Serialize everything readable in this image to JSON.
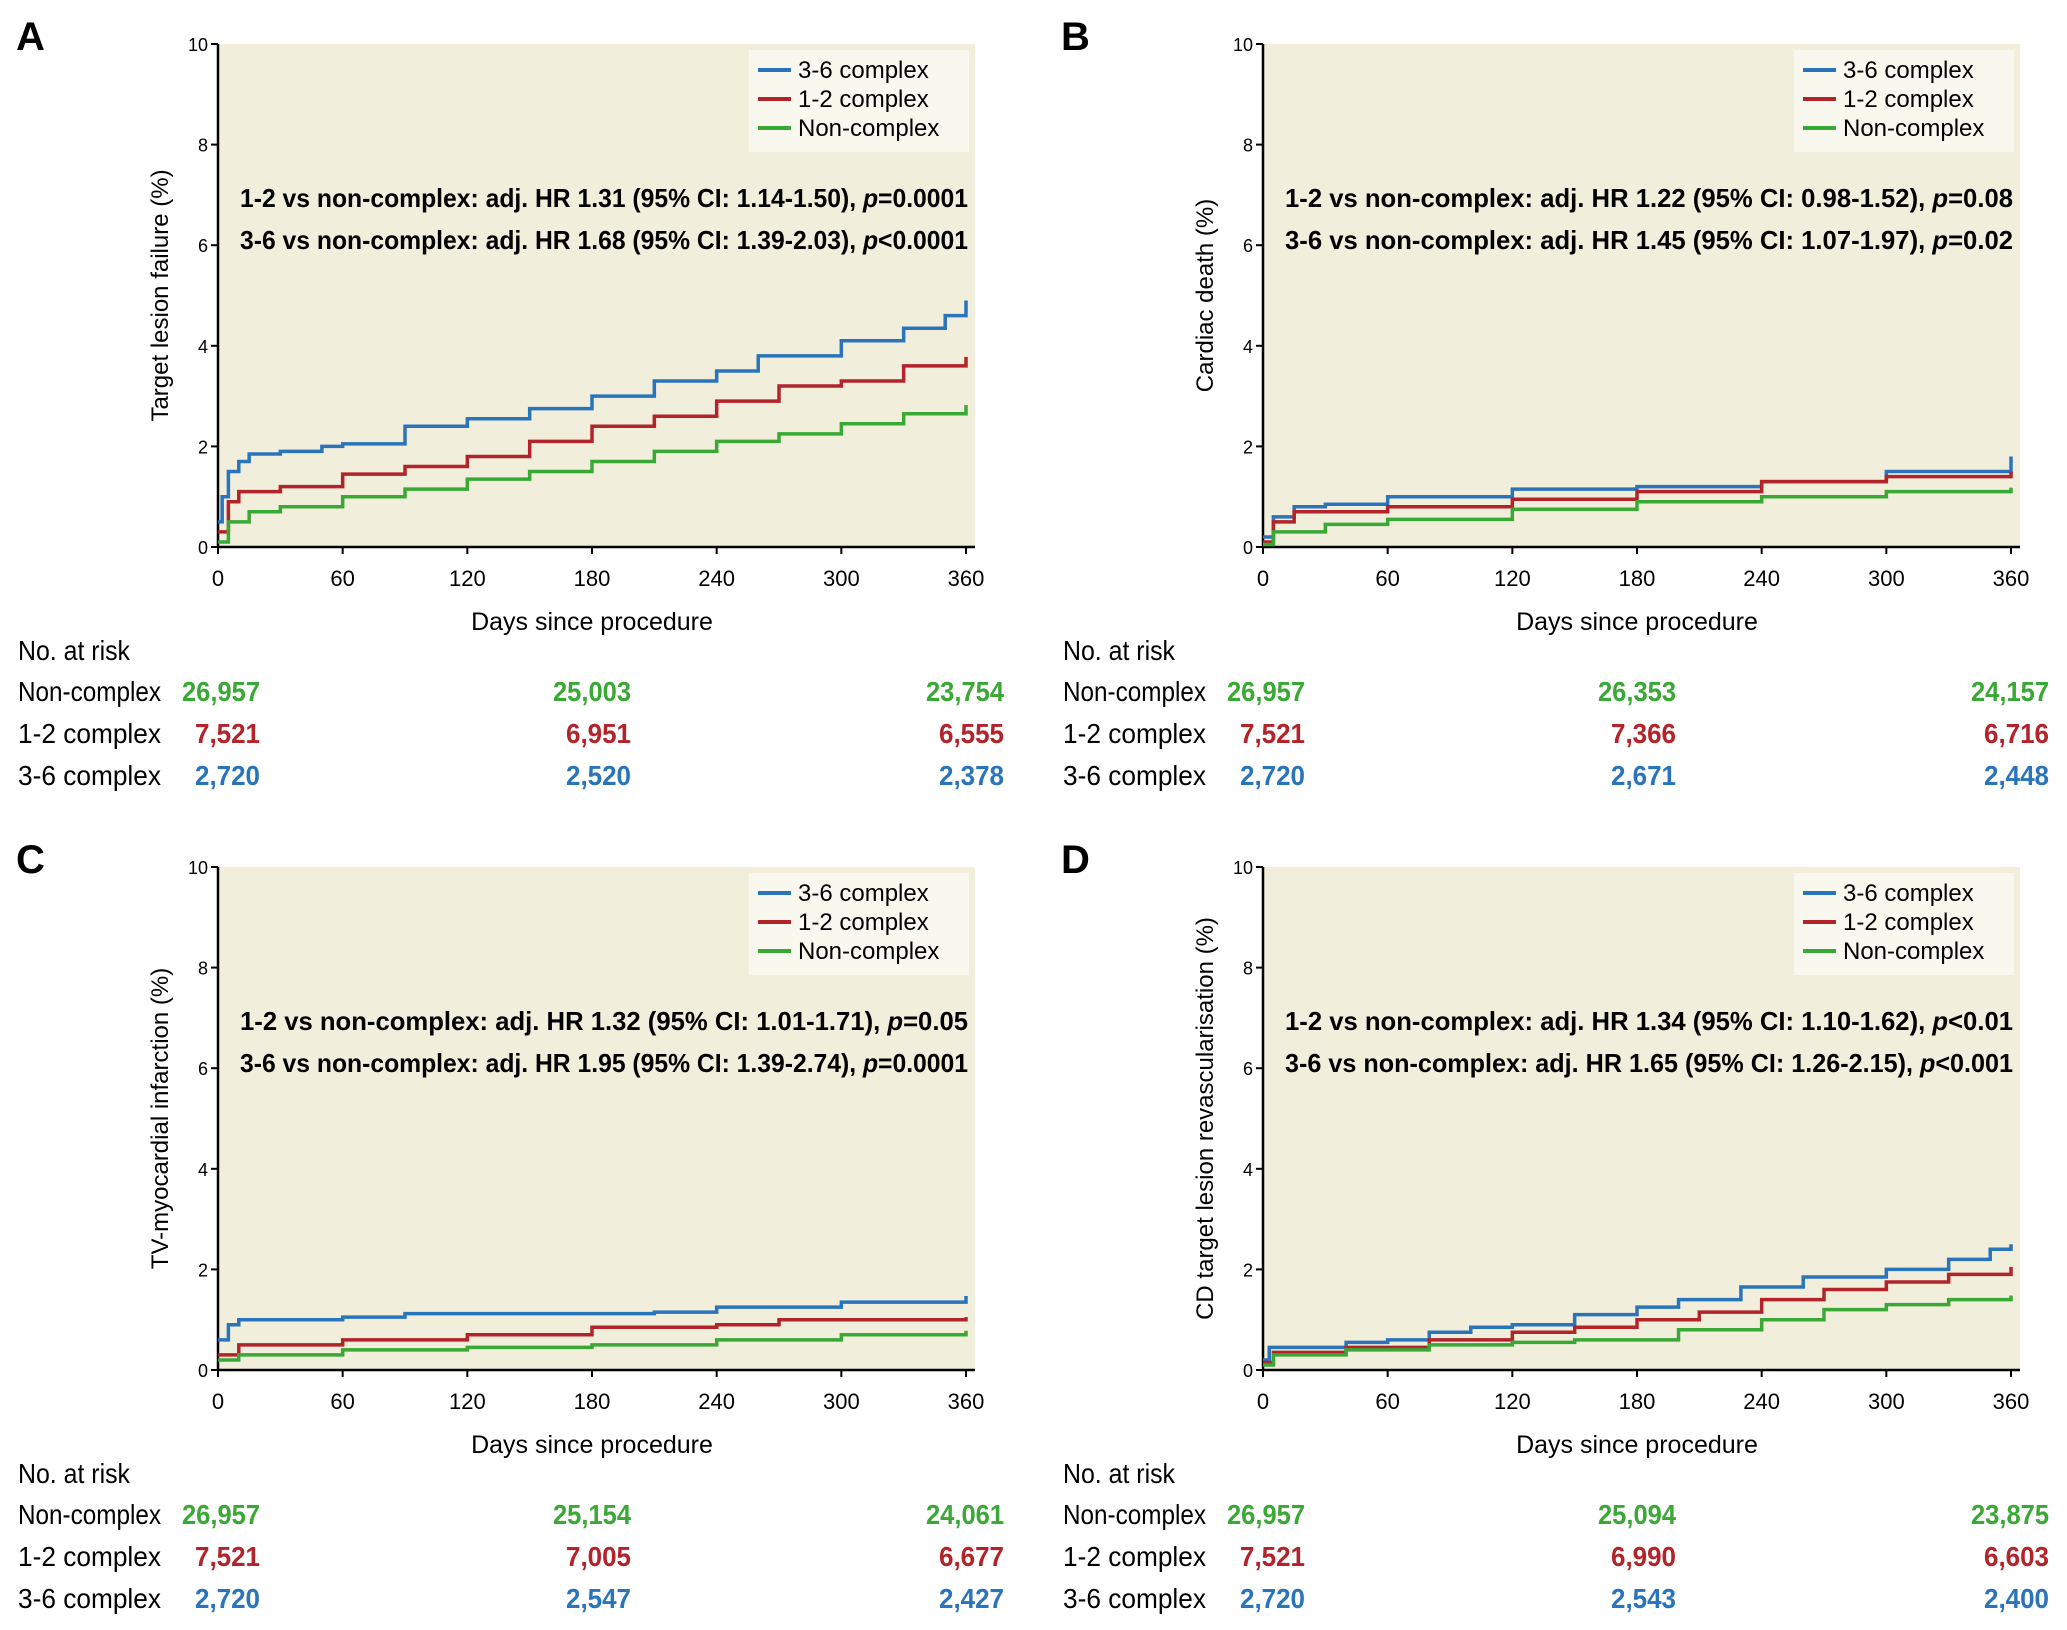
{
  "colors": {
    "blue": "#2a74bb",
    "red": "#b3232a",
    "green": "#3aa835",
    "plot_bg": "#f2eedc",
    "legend_bg": "#f9f8ef"
  },
  "chart_data": [
    {
      "type": "line",
      "panel": "A",
      "ylabel": "Target lesion failure (%)",
      "xlabel": "Days since procedure",
      "xlim": [
        0,
        360
      ],
      "ylim": [
        0,
        10
      ],
      "xticks": [
        0,
        60,
        120,
        180,
        240,
        300,
        360
      ],
      "yticks": [
        0,
        2,
        4,
        6,
        8,
        10
      ],
      "legend": [
        "3-6 complex",
        "1-2 complex",
        "Non-complex"
      ],
      "legend_position": "top-right",
      "annotations": [
        {
          "pre": "1-2 vs non-complex: adj. HR 1.31 (95% CI: 1.14-1.50), ",
          "p": "p",
          "post": "=0.0001"
        },
        {
          "pre": "3-6 vs non-complex: adj. HR 1.68 (95% CI: 1.39-2.03), ",
          "p": "p",
          "post": "<0.0001"
        }
      ],
      "series": [
        {
          "name": "3-6 complex",
          "color": "blue",
          "x": [
            0,
            2,
            5,
            10,
            15,
            30,
            50,
            60,
            90,
            120,
            150,
            180,
            200,
            210,
            240,
            260,
            300,
            330,
            350,
            360
          ],
          "y": [
            0.5,
            1.0,
            1.5,
            1.7,
            1.85,
            1.9,
            2.0,
            2.05,
            2.4,
            2.55,
            2.75,
            3.0,
            3.0,
            3.3,
            3.5,
            3.8,
            4.1,
            4.35,
            4.6,
            4.9
          ]
        },
        {
          "name": "1-2 complex",
          "color": "red",
          "x": [
            0,
            5,
            10,
            30,
            60,
            90,
            120,
            150,
            180,
            210,
            240,
            270,
            300,
            330,
            360
          ],
          "y": [
            0.3,
            0.9,
            1.1,
            1.2,
            1.45,
            1.6,
            1.8,
            2.1,
            2.4,
            2.6,
            2.9,
            3.2,
            3.3,
            3.6,
            3.78
          ]
        },
        {
          "name": "Non-complex",
          "color": "green",
          "x": [
            0,
            5,
            15,
            30,
            60,
            90,
            120,
            150,
            180,
            210,
            240,
            270,
            300,
            330,
            360
          ],
          "y": [
            0.1,
            0.5,
            0.7,
            0.8,
            1.0,
            1.15,
            1.35,
            1.5,
            1.7,
            1.9,
            2.1,
            2.25,
            2.45,
            2.65,
            2.82
          ]
        }
      ],
      "risk_table": {
        "title": "No. at risk",
        "rows": [
          {
            "label": "Non-complex",
            "color": "green",
            "values": [
              "26,957",
              "25,003",
              "23,754"
            ]
          },
          {
            "label": "1-2 complex",
            "color": "red",
            "values": [
              "7,521",
              "6,951",
              "6,555"
            ]
          },
          {
            "label": "3-6 complex",
            "color": "blue",
            "values": [
              "2,720",
              "2,520",
              "2,378"
            ]
          }
        ]
      }
    },
    {
      "type": "line",
      "panel": "B",
      "ylabel": "Cardiac death (%)",
      "xlabel": "Days since procedure",
      "xlim": [
        0,
        360
      ],
      "ylim": [
        0,
        10
      ],
      "xticks": [
        0,
        60,
        120,
        180,
        240,
        300,
        360
      ],
      "yticks": [
        0,
        2,
        4,
        6,
        8,
        10
      ],
      "legend": [
        "3-6 complex",
        "1-2 complex",
        "Non-complex"
      ],
      "legend_position": "top-right",
      "annotations": [
        {
          "pre": "1-2 vs non-complex: adj. HR 1.22 (95% CI: 0.98-1.52), ",
          "p": "p",
          "post": "=0.08"
        },
        {
          "pre": "3-6 vs non-complex: adj. HR 1.45 (95% CI: 1.07-1.97), ",
          "p": "p",
          "post": "=0.02"
        }
      ],
      "series": [
        {
          "name": "3-6 complex",
          "color": "blue",
          "x": [
            0,
            5,
            15,
            30,
            60,
            120,
            180,
            240,
            300,
            360
          ],
          "y": [
            0.2,
            0.6,
            0.8,
            0.85,
            1.0,
            1.15,
            1.2,
            1.3,
            1.5,
            1.8
          ]
        },
        {
          "name": "1-2 complex",
          "color": "red",
          "x": [
            0,
            5,
            15,
            60,
            120,
            180,
            240,
            300,
            360
          ],
          "y": [
            0.1,
            0.5,
            0.7,
            0.8,
            0.95,
            1.1,
            1.3,
            1.4,
            1.5
          ]
        },
        {
          "name": "Non-complex",
          "color": "green",
          "x": [
            0,
            5,
            30,
            60,
            120,
            180,
            240,
            300,
            360
          ],
          "y": [
            0.05,
            0.3,
            0.45,
            0.55,
            0.75,
            0.9,
            1.0,
            1.1,
            1.18
          ]
        }
      ],
      "risk_table": {
        "title": "No. at risk",
        "rows": [
          {
            "label": "Non-complex",
            "color": "green",
            "values": [
              "26,957",
              "26,353",
              "24,157"
            ]
          },
          {
            "label": "1-2 complex",
            "color": "red",
            "values": [
              "7,521",
              "7,366",
              "6,716"
            ]
          },
          {
            "label": "3-6 complex",
            "color": "blue",
            "values": [
              "2,720",
              "2,671",
              "2,448"
            ]
          }
        ]
      }
    },
    {
      "type": "line",
      "panel": "C",
      "ylabel": "TV-myocardial infarction (%)",
      "xlabel": "Days since procedure",
      "xlim": [
        0,
        360
      ],
      "ylim": [
        0,
        10
      ],
      "xticks": [
        0,
        60,
        120,
        180,
        240,
        300,
        360
      ],
      "yticks": [
        0,
        2,
        4,
        6,
        8,
        10
      ],
      "legend": [
        "3-6 complex",
        "1-2 complex",
        "Non-complex"
      ],
      "legend_position": "top-right",
      "annotations": [
        {
          "pre": "1-2 vs non-complex: adj. HR 1.32 (95% CI: 1.01-1.71), ",
          "p": "p",
          "post": "=0.05"
        },
        {
          "pre": "3-6 vs non-complex: adj. HR 1.95 (95% CI: 1.39-2.74), ",
          "p": "p",
          "post": "=0.0001"
        }
      ],
      "series": [
        {
          "name": "3-6 complex",
          "color": "blue",
          "x": [
            0,
            5,
            10,
            60,
            90,
            210,
            240,
            300,
            360
          ],
          "y": [
            0.6,
            0.9,
            1.0,
            1.05,
            1.12,
            1.15,
            1.25,
            1.35,
            1.47
          ]
        },
        {
          "name": "1-2 complex",
          "color": "red",
          "x": [
            0,
            10,
            60,
            120,
            180,
            240,
            270,
            360
          ],
          "y": [
            0.3,
            0.5,
            0.6,
            0.7,
            0.85,
            0.9,
            1.0,
            1.05
          ]
        },
        {
          "name": "Non-complex",
          "color": "green",
          "x": [
            0,
            10,
            60,
            120,
            180,
            240,
            300,
            360
          ],
          "y": [
            0.2,
            0.3,
            0.4,
            0.45,
            0.5,
            0.6,
            0.7,
            0.78
          ]
        }
      ],
      "risk_table": {
        "title": "No. at risk",
        "rows": [
          {
            "label": "Non-complex",
            "color": "green",
            "values": [
              "26,957",
              "25,154",
              "24,061"
            ]
          },
          {
            "label": "1-2 complex",
            "color": "red",
            "values": [
              "7,521",
              "7,005",
              "6,677"
            ]
          },
          {
            "label": "3-6 complex",
            "color": "blue",
            "values": [
              "2,720",
              "2,547",
              "2,427"
            ]
          }
        ]
      }
    },
    {
      "type": "line",
      "panel": "D",
      "ylabel": "CD target lesion revascularisation (%)",
      "xlabel": "Days since procedure",
      "xlim": [
        0,
        360
      ],
      "ylim": [
        0,
        10
      ],
      "xticks": [
        0,
        60,
        120,
        180,
        240,
        300,
        360
      ],
      "yticks": [
        0,
        2,
        4,
        6,
        8,
        10
      ],
      "legend": [
        "3-6 complex",
        "1-2 complex",
        "Non-complex"
      ],
      "legend_position": "top-right",
      "annotations": [
        {
          "pre": "1-2 vs non-complex: adj. HR 1.34 (95% CI: 1.10-1.62), ",
          "p": "p",
          "post": "<0.01"
        },
        {
          "pre": "3-6 vs non-complex: adj. HR 1.65 (95% CI: 1.26-2.15), ",
          "p": "p",
          "post": "<0.001"
        }
      ],
      "series": [
        {
          "name": "3-6 complex",
          "color": "blue",
          "x": [
            0,
            3,
            40,
            60,
            80,
            100,
            120,
            150,
            180,
            200,
            230,
            260,
            300,
            330,
            350,
            360
          ],
          "y": [
            0.2,
            0.45,
            0.55,
            0.6,
            0.75,
            0.85,
            0.9,
            1.1,
            1.25,
            1.4,
            1.65,
            1.85,
            2.0,
            2.2,
            2.4,
            2.5
          ]
        },
        {
          "name": "1-2 complex",
          "color": "red",
          "x": [
            0,
            5,
            40,
            80,
            120,
            150,
            180,
            210,
            240,
            270,
            300,
            330,
            360
          ],
          "y": [
            0.15,
            0.35,
            0.45,
            0.6,
            0.75,
            0.85,
            1.0,
            1.15,
            1.4,
            1.6,
            1.75,
            1.9,
            2.05
          ]
        },
        {
          "name": "Non-complex",
          "color": "green",
          "x": [
            0,
            5,
            40,
            80,
            120,
            150,
            200,
            240,
            270,
            300,
            330,
            360
          ],
          "y": [
            0.1,
            0.3,
            0.4,
            0.5,
            0.55,
            0.6,
            0.8,
            1.0,
            1.2,
            1.3,
            1.4,
            1.48
          ]
        }
      ],
      "risk_table": {
        "title": "No. at risk",
        "rows": [
          {
            "label": "Non-complex",
            "color": "green",
            "values": [
              "26,957",
              "25,094",
              "23,875"
            ]
          },
          {
            "label": "1-2 complex",
            "color": "red",
            "values": [
              "7,521",
              "6,990",
              "6,603"
            ]
          },
          {
            "label": "3-6 complex",
            "color": "blue",
            "values": [
              "2,720",
              "2,543",
              "2,400"
            ]
          }
        ]
      }
    }
  ]
}
